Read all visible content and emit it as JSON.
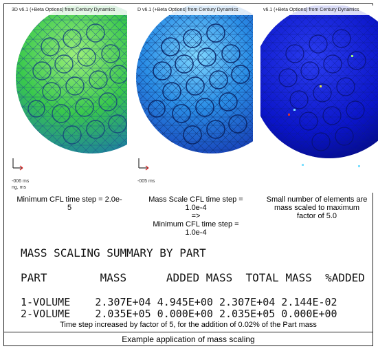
{
  "panels": [
    {
      "title": "3D v6.1 (+Beta Options) from Century Dynamics",
      "time_line1": "-006 ms",
      "time_line2": "ng, ms",
      "description": [
        "Minimum CFL time step = 2.0e-",
        "5"
      ]
    },
    {
      "title": "D v6.1 (+Beta Options) from Century Dynamics",
      "time_line1": "-005 ms",
      "description": [
        "Mass Scale CFL time step =",
        "1.0e-4",
        "=>",
        "Minimum  CFL time step =",
        "1.0e-4"
      ]
    },
    {
      "title": "v6.1 (+Beta Options) from Century Dynamics",
      "description": [
        "Small number of elements are",
        "mass scaled to maximum",
        "factor of 5.0"
      ]
    }
  ],
  "summary": {
    "heading": "MASS SCALING SUMMARY BY PART",
    "columns": "PART        MASS      ADDED MASS  TOTAL MASS  %ADDED",
    "rows": [
      "1-VOLUME    2.307E+04 4.945E+00 2.307E+04 2.144E-02",
      "2-VOLUME    2.035E+05 0.000E+00 2.035E+05 0.000E+00"
    ]
  },
  "note": "Time step increased by factor of 5, for the addition of 0.02% of the Part mass",
  "caption": "Example application of mass scaling",
  "colors": {
    "green_mesh": "#34c84a",
    "blue_mesh": "#1f6fe0",
    "deep_blue": "#0a14c8"
  }
}
